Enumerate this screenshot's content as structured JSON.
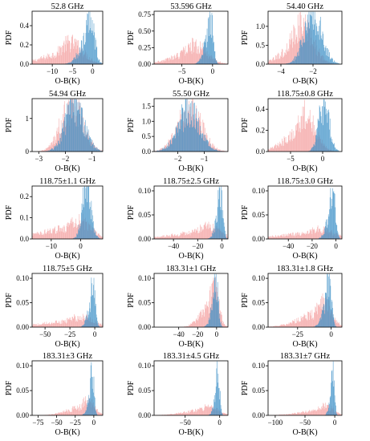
{
  "colors": {
    "background_hist": "#f4a6a6",
    "analysis_hist": "#3b8fc6",
    "overlap_tint": "#8a92b8"
  },
  "chart_data": [
    {
      "type": "histogram",
      "title": "52.8 GHz",
      "xlabel": "O-B(K)",
      "ylabel": "PDF",
      "xlim": [
        -15,
        2.5
      ],
      "ylim": [
        0,
        0.55
      ],
      "xticks": [
        -10,
        -5,
        0
      ],
      "yticks": [
        0.0,
        0.2,
        0.4
      ],
      "series": [
        {
          "mean": -5.5,
          "std": 3.0,
          "peak": 0.22,
          "skew": -0.4
        },
        {
          "mean": -0.6,
          "std": 1.0,
          "peak": 0.52,
          "skew": -0.5
        }
      ]
    },
    {
      "type": "histogram",
      "title": "53.596 GHz",
      "xlabel": "O-B(K)",
      "ylabel": "PDF",
      "xlim": [
        -9.5,
        2.5
      ],
      "ylim": [
        0,
        0.8
      ],
      "xticks": [
        -5,
        0
      ],
      "yticks": [
        0.0,
        0.25,
        0.5,
        0.75
      ],
      "series": [
        {
          "mean": -3.0,
          "std": 2.0,
          "peak": 0.28,
          "skew": -0.3
        },
        {
          "mean": -0.4,
          "std": 0.45,
          "peak": 0.78,
          "skew": -0.4
        }
      ]
    },
    {
      "type": "histogram",
      "title": "54.40 GHz",
      "xlabel": "O-B(K)",
      "ylabel": "PDF",
      "xlim": [
        -4.8,
        -0.2
      ],
      "ylim": [
        0,
        1.4
      ],
      "xticks": [
        -4,
        -2
      ],
      "yticks": [
        0.0,
        0.5,
        1.0
      ],
      "series": [
        {
          "mean": -2.7,
          "std": 0.7,
          "peak": 1.0,
          "skew": -0.2
        },
        {
          "mean": -2.0,
          "std": 0.55,
          "peak": 1.25,
          "skew": 0.0
        }
      ]
    },
    {
      "type": "histogram",
      "title": "54.94 GHz",
      "xlabel": "O-B(K)",
      "ylabel": "PDF",
      "xlim": [
        -3.25,
        -0.6
      ],
      "ylim": [
        0,
        1.6
      ],
      "xticks": [
        -3,
        -2,
        -1
      ],
      "yticks": [
        0,
        1
      ],
      "series": [
        {
          "mean": -1.75,
          "std": 0.4,
          "peak": 1.45,
          "skew": 0.0
        },
        {
          "mean": -1.65,
          "std": 0.35,
          "peak": 1.4,
          "skew": 0.0
        }
      ]
    },
    {
      "type": "histogram",
      "title": "55.50 GHz",
      "xlabel": "O-B(K)",
      "ylabel": "PDF",
      "xlim": [
        -2.9,
        -0.1
      ],
      "ylim": [
        0,
        1.75
      ],
      "xticks": [
        -2,
        -1
      ],
      "yticks": [
        0.0,
        0.5,
        1.0,
        1.5
      ],
      "series": [
        {
          "mean": -1.55,
          "std": 0.45,
          "peak": 1.35,
          "skew": 0.0
        },
        {
          "mean": -1.6,
          "std": 0.42,
          "peak": 1.3,
          "skew": 0.0
        }
      ]
    },
    {
      "type": "histogram",
      "title": "118.75±0.8 GHz",
      "xlabel": "O-B(K)",
      "ylabel": "PDF",
      "xlim": [
        -8.5,
        3
      ],
      "ylim": [
        0,
        0.5
      ],
      "xticks": [
        -5,
        0
      ],
      "yticks": [
        0.0,
        0.2,
        0.4
      ],
      "series": [
        {
          "mean": -2.8,
          "std": 1.6,
          "peak": 0.35,
          "skew": -0.3
        },
        {
          "mean": 0.2,
          "std": 0.8,
          "peak": 0.45,
          "skew": 0.0
        }
      ]
    },
    {
      "type": "histogram",
      "title": "118.75±1.1 GHz",
      "xlabel": "O-B(K)",
      "ylabel": "PDF",
      "xlim": [
        -16.5,
        7.5
      ],
      "ylim": [
        0,
        0.25
      ],
      "xticks": [
        -10,
        0
      ],
      "yticks": [
        0.0,
        0.1,
        0.2
      ],
      "series": [
        {
          "mean": -1.0,
          "std": 4.0,
          "peak": 0.09,
          "skew": -0.8
        },
        {
          "mean": 2.0,
          "std": 1.5,
          "peak": 0.24,
          "skew": 0.0
        }
      ]
    },
    {
      "type": "histogram",
      "title": "118.75±2.5 GHz",
      "xlabel": "O-B(K)",
      "ylabel": "PDF",
      "xlim": [
        -56,
        5
      ],
      "ylim": [
        0,
        0.11
      ],
      "xticks": [
        -40,
        -20,
        0
      ],
      "yticks": [
        0.0,
        0.05,
        0.1
      ],
      "series": [
        {
          "mean": -12.0,
          "std": 10.0,
          "peak": 0.025,
          "skew": -0.7
        },
        {
          "mean": -1.5,
          "std": 2.0,
          "peak": 0.1,
          "skew": -0.3
        }
      ]
    },
    {
      "type": "histogram",
      "title": "118.75±3.0 GHz",
      "xlabel": "O-B(K)",
      "ylabel": "PDF",
      "xlim": [
        -57,
        5
      ],
      "ylim": [
        0,
        0.11
      ],
      "xticks": [
        -40,
        -20,
        0
      ],
      "yticks": [
        0.0,
        0.05,
        0.1
      ],
      "series": [
        {
          "mean": -14.0,
          "std": 12.0,
          "peak": 0.02,
          "skew": -0.7
        },
        {
          "mean": -3.0,
          "std": 2.2,
          "peak": 0.1,
          "skew": -0.4
        }
      ]
    },
    {
      "type": "histogram",
      "title": "118.75±5 GHz",
      "xlabel": "O-B(K)",
      "ylabel": "PDF",
      "xlim": [
        -63,
        8
      ],
      "ylim": [
        0,
        0.11
      ],
      "xticks": [
        -50,
        -25,
        0
      ],
      "yticks": [
        0.0,
        0.05,
        0.1
      ],
      "series": [
        {
          "mean": -15.0,
          "std": 14.0,
          "peak": 0.02,
          "skew": -0.7
        },
        {
          "mean": -2.0,
          "std": 2.2,
          "peak": 0.1,
          "skew": -0.4
        }
      ]
    },
    {
      "type": "histogram",
      "title": "183.31±1 GHz",
      "xlabel": "O-B(K)",
      "ylabel": "PDF",
      "xlim": [
        -66,
        12
      ],
      "ylim": [
        0,
        0.11
      ],
      "xticks": [
        -40,
        -20,
        0
      ],
      "yticks": [
        0.0,
        0.05,
        0.1
      ],
      "series": [
        {
          "mean": -3.0,
          "std": 5.0,
          "peak": 0.08,
          "skew": -0.6
        },
        {
          "mean": -1.0,
          "std": 2.5,
          "peak": 0.1,
          "skew": -0.3
        }
      ]
    },
    {
      "type": "histogram",
      "title": "183.31±1.8 GHz",
      "xlabel": "O-B(K)",
      "ylabel": "PDF",
      "xlim": [
        -47,
        8
      ],
      "ylim": [
        0,
        0.11
      ],
      "xticks": [
        -25,
        0
      ],
      "yticks": [
        0.0,
        0.05,
        0.1
      ],
      "series": [
        {
          "mean": -6.0,
          "std": 6.0,
          "peak": 0.05,
          "skew": -0.7
        },
        {
          "mean": -2.0,
          "std": 2.0,
          "peak": 0.1,
          "skew": -0.4
        }
      ]
    },
    {
      "type": "histogram",
      "title": "183.31±3 GHz",
      "xlabel": "O-B(K)",
      "ylabel": "PDF",
      "xlim": [
        -83,
        12
      ],
      "ylim": [
        0,
        0.11
      ],
      "xticks": [
        -75,
        -50,
        -25,
        0
      ],
      "yticks": [
        0.0,
        0.05,
        0.1
      ],
      "series": [
        {
          "mean": -9.0,
          "std": 9.0,
          "peak": 0.03,
          "skew": -0.7
        },
        {
          "mean": -2.5,
          "std": 2.4,
          "peak": 0.1,
          "skew": -0.4
        }
      ]
    },
    {
      "type": "histogram",
      "title": "183.31±4.5 GHz",
      "xlabel": "O-B(K)",
      "ylabel": "PDF",
      "xlim": [
        -95,
        12
      ],
      "ylim": [
        0,
        0.11
      ],
      "xticks": [
        -50,
        0
      ],
      "yticks": [
        0.0,
        0.05,
        0.1
      ],
      "series": [
        {
          "mean": -14.0,
          "std": 12.0,
          "peak": 0.02,
          "skew": -0.7
        },
        {
          "mean": -2.5,
          "std": 2.4,
          "peak": 0.1,
          "skew": -0.4
        }
      ]
    },
    {
      "type": "histogram",
      "title": "183.31±7 GHz",
      "xlabel": "O-B(K)",
      "ylabel": "PDF",
      "xlim": [
        -112,
        12
      ],
      "ylim": [
        0,
        0.11
      ],
      "xticks": [
        -100,
        -50,
        0
      ],
      "yticks": [
        0.0,
        0.05,
        0.1
      ],
      "series": [
        {
          "mean": -16.0,
          "std": 14.0,
          "peak": 0.018,
          "skew": -0.7
        },
        {
          "mean": -3.0,
          "std": 2.5,
          "peak": 0.1,
          "skew": -0.4
        }
      ]
    }
  ]
}
